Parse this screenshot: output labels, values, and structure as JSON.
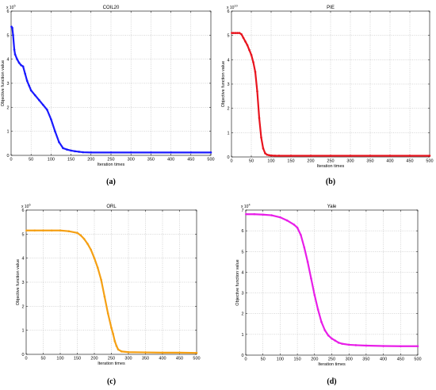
{
  "chart_data": [
    {
      "type": "line",
      "panel_id": "coil20",
      "title": "COIL20",
      "xlabel": "Iteration times",
      "ylabel": "Objective function value",
      "y_exponent_label": "x 10^5",
      "caption": "(a)",
      "xlim": [
        0,
        500
      ],
      "ylim": [
        0,
        6
      ],
      "x_ticks": [
        0,
        50,
        100,
        150,
        200,
        250,
        300,
        350,
        400,
        450,
        500
      ],
      "y_ticks": [
        0,
        1,
        2,
        3,
        4,
        5,
        6
      ],
      "grid": true,
      "color": "#1a1aff",
      "series": [
        {
          "x": [
            1,
            3,
            5,
            8,
            10,
            15,
            20,
            25,
            30,
            35,
            40,
            45,
            50,
            60,
            70,
            80,
            90,
            100,
            110,
            120,
            130,
            140,
            150,
            160,
            170,
            180,
            200,
            250,
            300,
            350,
            400,
            450,
            500
          ],
          "values": [
            5.35,
            5.3,
            5.0,
            4.4,
            4.2,
            4.0,
            3.85,
            3.75,
            3.7,
            3.4,
            3.1,
            2.9,
            2.7,
            2.5,
            2.3,
            2.1,
            1.9,
            1.5,
            1.0,
            0.55,
            0.3,
            0.24,
            0.2,
            0.17,
            0.15,
            0.13,
            0.12,
            0.12,
            0.12,
            0.12,
            0.12,
            0.12,
            0.12
          ]
        }
      ]
    },
    {
      "type": "line",
      "panel_id": "pie",
      "title": "PIE",
      "xlabel": "Iteration times",
      "ylabel": "Objective function value",
      "y_exponent_label": "x 10^10",
      "caption": "(b)",
      "xlim": [
        0,
        500
      ],
      "ylim": [
        0,
        6
      ],
      "x_ticks": [
        0,
        50,
        100,
        150,
        200,
        250,
        300,
        350,
        400,
        450,
        500
      ],
      "y_ticks": [
        0,
        1,
        2,
        3,
        4,
        5,
        6
      ],
      "grid": true,
      "color": "#e8141e",
      "series": [
        {
          "x": [
            1,
            5,
            10,
            15,
            20,
            25,
            30,
            35,
            40,
            45,
            50,
            55,
            60,
            65,
            70,
            75,
            80,
            85,
            90,
            95,
            100,
            110,
            120,
            150,
            200,
            250,
            300,
            350,
            400,
            450,
            500
          ],
          "values": [
            5.1,
            5.1,
            5.1,
            5.1,
            5.1,
            5.05,
            4.9,
            4.75,
            4.6,
            4.4,
            4.2,
            3.9,
            3.5,
            2.7,
            1.6,
            0.8,
            0.35,
            0.15,
            0.09,
            0.07,
            0.06,
            0.05,
            0.05,
            0.05,
            0.05,
            0.05,
            0.05,
            0.05,
            0.05,
            0.05,
            0.05
          ]
        }
      ]
    },
    {
      "type": "line",
      "panel_id": "orl",
      "title": "ORL",
      "xlabel": "Iteration times",
      "ylabel": "Objective function value",
      "y_exponent_label": "x 10^6",
      "caption": "(c)",
      "xlim": [
        0,
        500
      ],
      "ylim": [
        0,
        6
      ],
      "x_ticks": [
        0,
        50,
        100,
        150,
        200,
        250,
        300,
        350,
        400,
        450,
        500
      ],
      "y_ticks": [
        0,
        1,
        2,
        3,
        4,
        5,
        6
      ],
      "grid": true,
      "color": "#f5a014",
      "series": [
        {
          "x": [
            1,
            25,
            50,
            75,
            100,
            125,
            150,
            160,
            170,
            180,
            190,
            200,
            210,
            220,
            230,
            240,
            250,
            255,
            260,
            265,
            270,
            280,
            300,
            350,
            400,
            450,
            500
          ],
          "values": [
            5.15,
            5.15,
            5.15,
            5.15,
            5.15,
            5.12,
            5.05,
            4.95,
            4.8,
            4.6,
            4.35,
            4.0,
            3.6,
            3.1,
            2.4,
            1.7,
            1.1,
            0.85,
            0.55,
            0.35,
            0.2,
            0.12,
            0.09,
            0.08,
            0.07,
            0.07,
            0.06
          ]
        }
      ]
    },
    {
      "type": "line",
      "panel_id": "yale",
      "title": "Yale",
      "xlabel": "Iteration times",
      "ylabel": "Objective function value",
      "y_exponent_label": "x 10^4",
      "caption": "(d)",
      "xlim": [
        0,
        500
      ],
      "ylim": [
        0,
        7
      ],
      "x_ticks": [
        0,
        50,
        100,
        150,
        200,
        250,
        300,
        350,
        400,
        450,
        500
      ],
      "y_ticks": [
        0,
        1,
        2,
        3,
        4,
        5,
        6,
        7
      ],
      "grid": true,
      "color": "#e81ee8",
      "series": [
        {
          "x": [
            1,
            25,
            50,
            75,
            100,
            120,
            140,
            150,
            160,
            170,
            180,
            190,
            200,
            210,
            220,
            230,
            240,
            250,
            260,
            270,
            280,
            300,
            320,
            350,
            400,
            450,
            500
          ],
          "values": [
            6.8,
            6.8,
            6.78,
            6.75,
            6.65,
            6.5,
            6.3,
            6.15,
            5.8,
            5.2,
            4.5,
            3.7,
            2.9,
            2.2,
            1.6,
            1.2,
            0.95,
            0.8,
            0.7,
            0.6,
            0.55,
            0.5,
            0.48,
            0.46,
            0.44,
            0.43,
            0.43
          ]
        }
      ]
    }
  ]
}
